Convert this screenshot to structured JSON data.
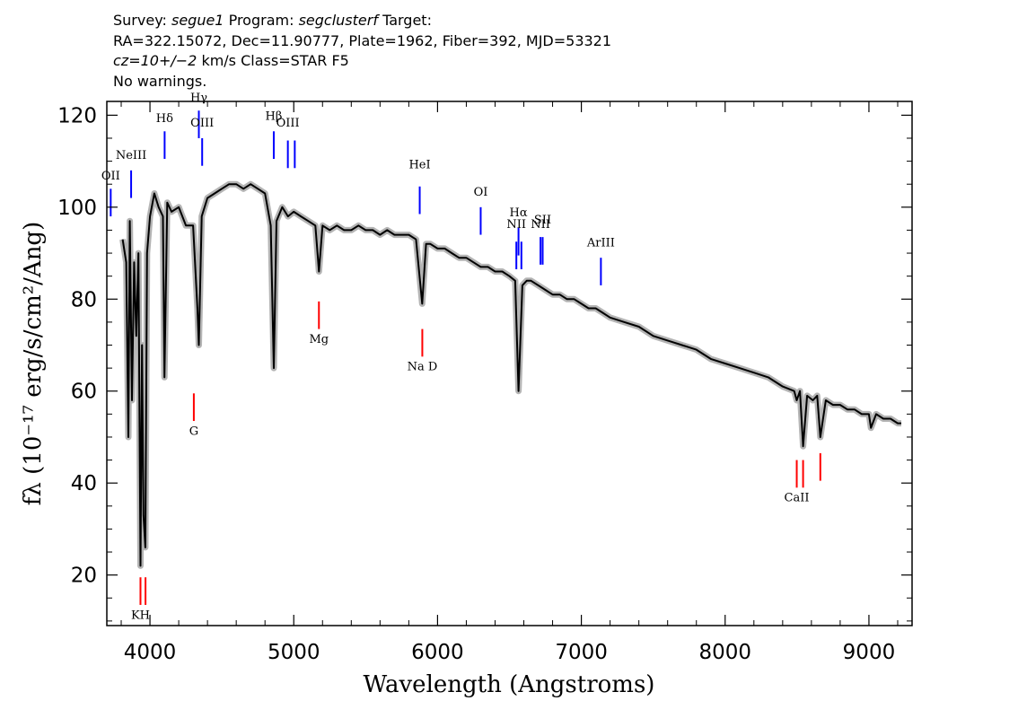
{
  "header": {
    "line1": {
      "survey_label": "Survey:",
      "survey": "segue1",
      "program_label": "Program:",
      "program": "segclusterf",
      "target_label": "Target:"
    },
    "line2": "RA=322.15072, Dec=11.90777, Plate=1962, Fiber=392, MJD=53321",
    "line3": {
      "cz": "cz=10+/−2",
      "rest": "km/s Class=STAR F5"
    },
    "line4": "No warnings."
  },
  "colors": {
    "spectrum": "#000000",
    "error_band": "#b4b4b4",
    "emission_marker": "#0000ff",
    "absorption_marker": "#ff0000",
    "frame": "#000000"
  },
  "chart_data": {
    "type": "line",
    "xlabel": "Wavelength (Angstroms)",
    "ylabel": "fλ (10⁻¹⁷ erg/s/cm²/Ang)",
    "xlim": [
      3700,
      9300
    ],
    "ylim": [
      9,
      123
    ],
    "x_ticks": [
      4000,
      5000,
      6000,
      7000,
      8000,
      9000
    ],
    "y_ticks": [
      20,
      40,
      60,
      80,
      100,
      120
    ],
    "grid": false,
    "legend": "none",
    "series": [
      {
        "x": [
          3810,
          3835,
          3850,
          3860,
          3875,
          3890,
          3905,
          3920,
          3934,
          3945,
          3955,
          3968,
          3980,
          4000,
          4030,
          4060,
          4090,
          4101,
          4120,
          4150,
          4200,
          4250,
          4300,
          4330,
          4340,
          4360,
          4400,
          4450,
          4500,
          4550,
          4600,
          4650,
          4700,
          4750,
          4800,
          4840,
          4861,
          4880,
          4920,
          4960,
          5000,
          5050,
          5100,
          5150,
          5175,
          5200,
          5250,
          5300,
          5350,
          5400,
          5450,
          5500,
          5550,
          5600,
          5650,
          5700,
          5750,
          5800,
          5850,
          5893,
          5920,
          5950,
          6000,
          6050,
          6100,
          6150,
          6200,
          6250,
          6300,
          6350,
          6400,
          6450,
          6500,
          6540,
          6563,
          6590,
          6620,
          6650,
          6700,
          6750,
          6800,
          6850,
          6900,
          6950,
          7000,
          7050,
          7100,
          7150,
          7200,
          7300,
          7400,
          7500,
          7600,
          7700,
          7800,
          7900,
          8000,
          8100,
          8200,
          8300,
          8400,
          8480,
          8498,
          8520,
          8542,
          8570,
          8610,
          8640,
          8662,
          8700,
          8750,
          8800,
          8850,
          8900,
          8950,
          9000,
          9014,
          9050,
          9100,
          9150,
          9200,
          9225
        ],
        "y": [
          93,
          88,
          50,
          97,
          58,
          88,
          72,
          90,
          22,
          70,
          33,
          26,
          90,
          98,
          103,
          100,
          98,
          63,
          101,
          99,
          100,
          96,
          96,
          78,
          70,
          98,
          102,
          103,
          104,
          105,
          105,
          104,
          105,
          104,
          103,
          96,
          65,
          97,
          100,
          98,
          99,
          98,
          97,
          96,
          86,
          96,
          95,
          96,
          95,
          95,
          96,
          95,
          95,
          94,
          95,
          94,
          94,
          94,
          93,
          79,
          92,
          92,
          91,
          91,
          90,
          89,
          89,
          88,
          87,
          87,
          86,
          86,
          85,
          84,
          60,
          83,
          84,
          84,
          83,
          82,
          81,
          81,
          80,
          80,
          79,
          78,
          78,
          77,
          76,
          75,
          74,
          72,
          71,
          70,
          69,
          67,
          66,
          65,
          64,
          63,
          61,
          60,
          58,
          60,
          48,
          59,
          58,
          59,
          50,
          58,
          57,
          57,
          56,
          56,
          55,
          55,
          52,
          55,
          54,
          54,
          53,
          53
        ]
      }
    ],
    "line_markers": [
      {
        "label": "OII",
        "x": 3727,
        "y_bottom": 98,
        "y_top": 104,
        "color": "emission",
        "label_y": 106
      },
      {
        "label": "NeIII",
        "x": 3869,
        "y_bottom": 102,
        "y_top": 108,
        "color": "emission",
        "label_y": 110.5
      },
      {
        "label": "Hδ",
        "x": 4102,
        "y_bottom": 110.5,
        "y_top": 116.5,
        "color": "emission",
        "label_y": 118.5
      },
      {
        "label": "Hγ",
        "x": 4340,
        "y_bottom": 115,
        "y_top": 121,
        "color": "emission",
        "label_y": 123
      },
      {
        "label": "OIII",
        "x": 4363,
        "y_bottom": 109,
        "y_top": 115,
        "color": "emission",
        "label_y": 117.5
      },
      {
        "label": "Hβ",
        "x": 4861,
        "y_bottom": 110.5,
        "y_top": 116.5,
        "color": "emission",
        "label_y": 119
      },
      {
        "label": "OIII",
        "x": 4959,
        "y_bottom": 108.5,
        "y_top": 114.5,
        "color": "emission",
        "label_y": 117.5
      },
      {
        "label": "",
        "x": 5007,
        "y_bottom": 108.5,
        "y_top": 114.5,
        "color": "emission"
      },
      {
        "label": "HeI",
        "x": 5876,
        "y_bottom": 98.5,
        "y_top": 104.5,
        "color": "emission",
        "label_y": 108.5
      },
      {
        "label": "OI",
        "x": 6300,
        "y_bottom": 94,
        "y_top": 100,
        "color": "emission",
        "label_y": 102.5
      },
      {
        "label": "NII",
        "x": 6548,
        "y_bottom": 86.5,
        "y_top": 92.5,
        "color": "emission",
        "label_y": 95.5
      },
      {
        "label": "Hα",
        "x": 6563,
        "y_bottom": 89.5,
        "y_top": 95.5,
        "color": "emission",
        "label_y": 98
      },
      {
        "label": "",
        "x": 6583,
        "y_bottom": 86.5,
        "y_top": 92.5,
        "color": "emission"
      },
      {
        "label": "NII",
        "x": 6716,
        "y_bottom": 87.5,
        "y_top": 93.5,
        "color": "emission",
        "label_y": 95.5
      },
      {
        "label": "SII",
        "x": 6731,
        "y_bottom": 87.5,
        "y_top": 93.5,
        "color": "emission",
        "label_y": 96.5
      },
      {
        "label": "ArIII",
        "x": 7136,
        "y_bottom": 83,
        "y_top": 89,
        "color": "emission",
        "label_y": 91.5
      },
      {
        "label": "KH",
        "x": 3934,
        "y_bottom": 13.5,
        "y_top": 19.5,
        "color": "absorption",
        "label_y": 10.5
      },
      {
        "label": "",
        "x": 3969,
        "y_bottom": 13.5,
        "y_top": 19.5,
        "color": "absorption"
      },
      {
        "label": "G",
        "x": 4305,
        "y_bottom": 53.5,
        "y_top": 59.5,
        "color": "absorption",
        "label_y": 50.5
      },
      {
        "label": "Mg",
        "x": 5175,
        "y_bottom": 73.5,
        "y_top": 79.5,
        "color": "absorption",
        "label_y": 70.5
      },
      {
        "label": "Na D",
        "x": 5894,
        "y_bottom": 67.5,
        "y_top": 73.5,
        "color": "absorption",
        "label_y": 64.5
      },
      {
        "label": "CaII",
        "x": 8498,
        "y_bottom": 39,
        "y_top": 45,
        "color": "absorption",
        "label_y": 36
      },
      {
        "label": "",
        "x": 8542,
        "y_bottom": 39,
        "y_top": 45,
        "color": "absorption"
      },
      {
        "label": "",
        "x": 8662,
        "y_bottom": 40.5,
        "y_top": 46.5,
        "color": "absorption"
      }
    ]
  }
}
